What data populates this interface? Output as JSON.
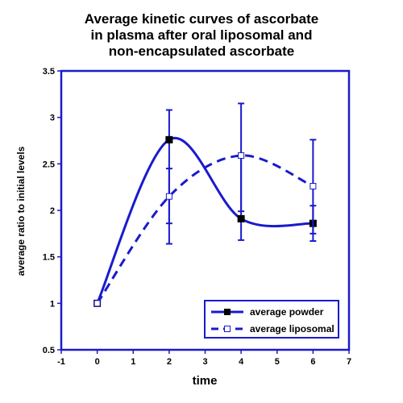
{
  "chart_data": {
    "type": "line",
    "title": [
      "Average kinetic curves of ascorbate",
      "in plasma after oral liposomal and",
      "non-encapsulated ascorbate"
    ],
    "xlabel": "time",
    "ylabel": "average ratio to initial levels",
    "xlim": [
      -1,
      7
    ],
    "ylim": [
      0.5,
      3.5
    ],
    "xticks": [
      "-1",
      "0",
      "1",
      "2",
      "3",
      "4",
      "5",
      "6",
      "7"
    ],
    "yticks": [
      "0.5",
      "1",
      "1.5",
      "2",
      "2.5",
      "3",
      "3.5"
    ],
    "grid": false,
    "legend_position": "bottom-right",
    "series": [
      {
        "name": "average powder",
        "line_style": "solid",
        "marker": "filled-square",
        "color": "#1a1acc",
        "points": [
          {
            "x": 0,
            "y": 1.0
          },
          {
            "x": 2,
            "y": 2.76,
            "err_low": 1.64,
            "err_high": 3.08
          },
          {
            "x": 4,
            "y": 1.91,
            "err_low": 1.68,
            "err_high": 3.15
          },
          {
            "x": 6,
            "y": 1.86,
            "err_low": 1.67,
            "err_high": 2.05
          }
        ]
      },
      {
        "name": "average liposomal",
        "line_style": "dashed",
        "marker": "open-square",
        "color": "#1a1acc",
        "points": [
          {
            "x": 0,
            "y": 1.0
          },
          {
            "x": 2,
            "y": 2.15,
            "err_low": 1.86,
            "err_high": 2.45
          },
          {
            "x": 4,
            "y": 2.59,
            "err_low": 1.99,
            "err_high": 2.58
          },
          {
            "x": 6,
            "y": 2.26,
            "err_low": 1.75,
            "err_high": 2.76
          }
        ]
      }
    ]
  }
}
